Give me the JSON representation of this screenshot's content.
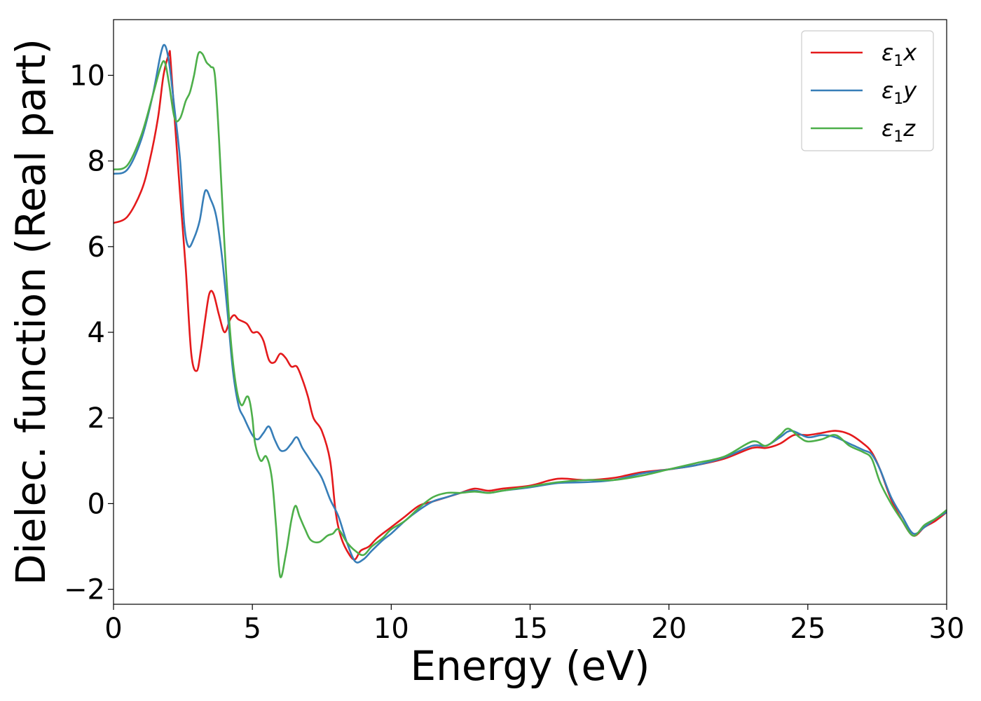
{
  "chart_data": {
    "type": "line",
    "xlabel": "Energy (eV)",
    "ylabel": "Dielec. function (Real part)",
    "xlim": [
      0,
      30
    ],
    "ylim": [
      -2.35,
      11.3
    ],
    "xticks": [
      0,
      5,
      10,
      15,
      20,
      25,
      30
    ],
    "xtick_labels": [
      "0",
      "5",
      "10",
      "15",
      "20",
      "25",
      "30"
    ],
    "yticks": [
      -2,
      0,
      2,
      4,
      6,
      8,
      10
    ],
    "ytick_labels": [
      "−2",
      "0",
      "2",
      "4",
      "6",
      "8",
      "10"
    ],
    "grid": false,
    "legend": {
      "position": "top-right"
    },
    "series": [
      {
        "name_main": "ε",
        "name_sub": "1",
        "name_tail": "x",
        "color": "#e41a1c",
        "x": [
          0,
          0.5,
          1.0,
          1.3,
          1.6,
          1.8,
          2.0,
          2.05,
          2.2,
          2.4,
          2.6,
          2.8,
          3.0,
          3.15,
          3.3,
          3.45,
          3.6,
          3.8,
          4.0,
          4.2,
          4.35,
          4.5,
          4.8,
          5.0,
          5.2,
          5.4,
          5.6,
          5.8,
          6.0,
          6.2,
          6.4,
          6.6,
          6.8,
          7.0,
          7.2,
          7.5,
          7.8,
          8.0,
          8.2,
          8.5,
          8.7,
          8.9,
          9.2,
          9.5,
          10.0,
          10.5,
          11.0,
          11.5,
          12.0,
          12.5,
          13.0,
          13.5,
          14.0,
          15.0,
          16.0,
          17.0,
          18.0,
          19.0,
          20.0,
          21.0,
          22.0,
          23.0,
          23.5,
          24.0,
          24.5,
          25.0,
          25.5,
          26.0,
          26.5,
          27.0,
          27.3,
          27.6,
          28.0,
          28.4,
          28.8,
          29.2,
          29.6,
          30.0
        ],
        "y": [
          6.55,
          6.7,
          7.3,
          8.0,
          9.0,
          10.0,
          10.5,
          10.4,
          9.0,
          7.2,
          5.5,
          3.5,
          3.1,
          3.6,
          4.3,
          4.9,
          4.9,
          4.4,
          4.0,
          4.3,
          4.4,
          4.3,
          4.2,
          4.0,
          4.0,
          3.8,
          3.35,
          3.3,
          3.5,
          3.4,
          3.2,
          3.2,
          2.9,
          2.5,
          2.0,
          1.7,
          1.0,
          -0.2,
          -0.8,
          -1.2,
          -1.3,
          -1.1,
          -1.0,
          -0.8,
          -0.55,
          -0.3,
          -0.05,
          0.05,
          0.15,
          0.25,
          0.35,
          0.3,
          0.35,
          0.42,
          0.58,
          0.55,
          0.6,
          0.73,
          0.8,
          0.9,
          1.05,
          1.3,
          1.3,
          1.4,
          1.6,
          1.6,
          1.65,
          1.7,
          1.62,
          1.4,
          1.2,
          0.8,
          0.1,
          -0.4,
          -0.75,
          -0.55,
          -0.4,
          -0.2
        ]
      },
      {
        "name_main": "ε",
        "name_sub": "1",
        "name_tail": "y",
        "color": "#377eb8",
        "x": [
          0,
          0.5,
          1.0,
          1.4,
          1.7,
          1.85,
          2.0,
          2.2,
          2.4,
          2.55,
          2.7,
          2.9,
          3.1,
          3.3,
          3.5,
          3.7,
          3.9,
          4.1,
          4.3,
          4.5,
          4.7,
          5.0,
          5.2,
          5.4,
          5.6,
          5.8,
          6.0,
          6.2,
          6.4,
          6.6,
          6.8,
          7.0,
          7.2,
          7.5,
          7.8,
          8.1,
          8.4,
          8.7,
          9.0,
          9.3,
          9.7,
          10.0,
          10.5,
          11.0,
          11.5,
          12.0,
          12.5,
          13.0,
          13.5,
          14.0,
          15.0,
          16.0,
          17.0,
          18.0,
          19.0,
          20.0,
          21.0,
          22.0,
          23.0,
          23.5,
          24.0,
          24.4,
          25.0,
          25.5,
          26.0,
          26.5,
          27.0,
          27.3,
          27.6,
          28.0,
          28.4,
          28.8,
          29.2,
          29.6,
          30.0
        ],
        "y": [
          7.7,
          7.8,
          8.5,
          9.5,
          10.5,
          10.7,
          10.3,
          9.2,
          8.0,
          6.5,
          6.0,
          6.2,
          6.6,
          7.3,
          7.1,
          6.7,
          5.8,
          4.5,
          3.1,
          2.3,
          2.0,
          1.6,
          1.5,
          1.65,
          1.8,
          1.5,
          1.25,
          1.25,
          1.4,
          1.55,
          1.3,
          1.1,
          0.9,
          0.6,
          0.1,
          -0.3,
          -0.9,
          -1.35,
          -1.3,
          -1.1,
          -0.85,
          -0.7,
          -0.4,
          -0.15,
          0.05,
          0.15,
          0.25,
          0.3,
          0.25,
          0.3,
          0.38,
          0.48,
          0.5,
          0.55,
          0.7,
          0.8,
          0.9,
          1.08,
          1.35,
          1.35,
          1.55,
          1.7,
          1.55,
          1.6,
          1.55,
          1.4,
          1.25,
          1.15,
          0.8,
          0.15,
          -0.3,
          -0.7,
          -0.55,
          -0.35,
          -0.2
        ]
      },
      {
        "name_main": "ε",
        "name_sub": "1",
        "name_tail": "z",
        "color": "#4daf4a",
        "x": [
          0,
          0.5,
          1.0,
          1.4,
          1.7,
          1.85,
          2.0,
          2.2,
          2.4,
          2.6,
          2.75,
          2.9,
          3.05,
          3.2,
          3.35,
          3.5,
          3.65,
          3.8,
          4.0,
          4.2,
          4.4,
          4.6,
          4.8,
          4.9,
          5.0,
          5.1,
          5.3,
          5.5,
          5.7,
          5.85,
          6.0,
          6.2,
          6.4,
          6.55,
          6.7,
          6.9,
          7.1,
          7.4,
          7.7,
          7.9,
          8.1,
          8.4,
          8.7,
          9.0,
          9.3,
          9.7,
          10.0,
          10.5,
          11.0,
          11.5,
          12.0,
          12.5,
          13.0,
          13.5,
          14.0,
          15.0,
          16.0,
          17.0,
          18.0,
          19.0,
          20.0,
          21.0,
          22.0,
          23.0,
          23.5,
          24.0,
          24.3,
          24.7,
          25.0,
          25.5,
          26.0,
          26.5,
          27.0,
          27.3,
          27.6,
          28.0,
          28.4,
          28.8,
          29.2,
          29.6,
          30.0
        ],
        "y": [
          7.8,
          7.9,
          8.6,
          9.5,
          10.2,
          10.3,
          9.8,
          9.0,
          9.0,
          9.4,
          9.6,
          10.0,
          10.5,
          10.5,
          10.3,
          10.2,
          10.0,
          8.5,
          6.0,
          4.0,
          2.8,
          2.3,
          2.5,
          2.4,
          2.0,
          1.4,
          1.0,
          1.1,
          0.6,
          -0.5,
          -1.7,
          -1.2,
          -0.4,
          -0.05,
          -0.3,
          -0.6,
          -0.85,
          -0.9,
          -0.75,
          -0.7,
          -0.6,
          -0.9,
          -1.1,
          -1.2,
          -1.0,
          -0.8,
          -0.6,
          -0.4,
          -0.1,
          0.15,
          0.25,
          0.25,
          0.28,
          0.25,
          0.3,
          0.4,
          0.5,
          0.55,
          0.55,
          0.65,
          0.8,
          0.95,
          1.1,
          1.45,
          1.35,
          1.6,
          1.75,
          1.55,
          1.45,
          1.5,
          1.6,
          1.35,
          1.2,
          1.05,
          0.5,
          0.0,
          -0.4,
          -0.75,
          -0.5,
          -0.35,
          -0.15
        ]
      }
    ]
  }
}
